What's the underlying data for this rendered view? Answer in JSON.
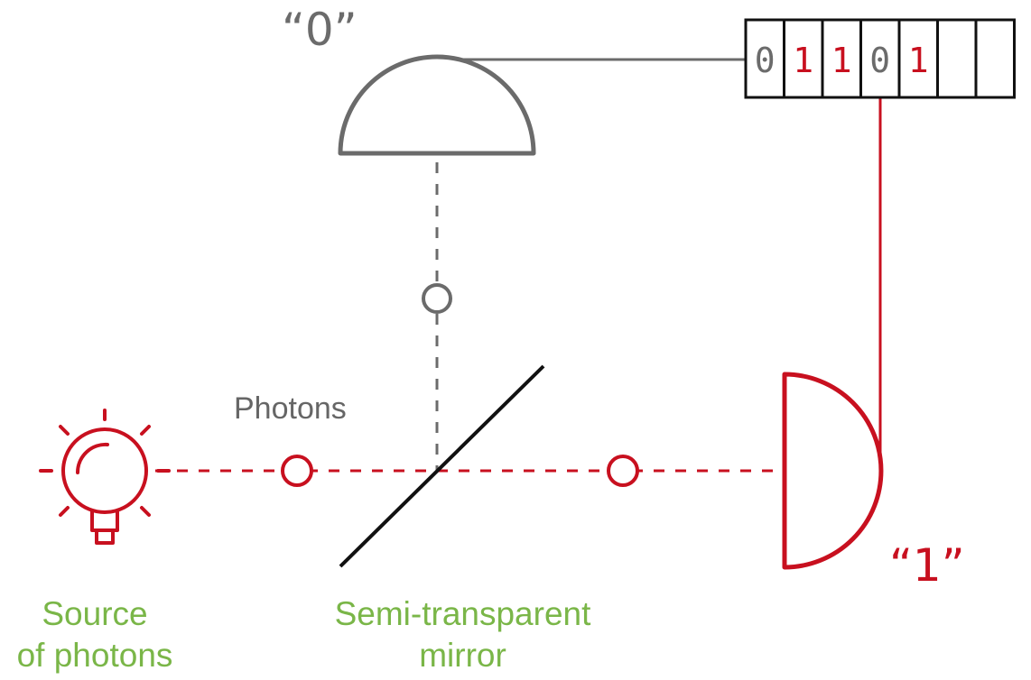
{
  "labels": {
    "detector_zero": "“0”",
    "detector_one": "“1”",
    "photons": "Photons",
    "source_line1": "Source",
    "source_line2": "of photons",
    "mirror_line1": "Semi-transparent",
    "mirror_line2": "mirror"
  },
  "register": {
    "bits": [
      {
        "value": "0",
        "color": "#6b6b6b"
      },
      {
        "value": "1",
        "color": "#c8101f"
      },
      {
        "value": "1",
        "color": "#c8101f"
      },
      {
        "value": "0",
        "color": "#6b6b6b"
      },
      {
        "value": "1",
        "color": "#c8101f"
      },
      {
        "value": "",
        "color": "#6b6b6b"
      },
      {
        "value": "",
        "color": "#6b6b6b"
      }
    ]
  },
  "colors": {
    "red": "#c8101f",
    "gray": "#6b6b6b",
    "green": "#7ab648",
    "black": "#111111"
  }
}
